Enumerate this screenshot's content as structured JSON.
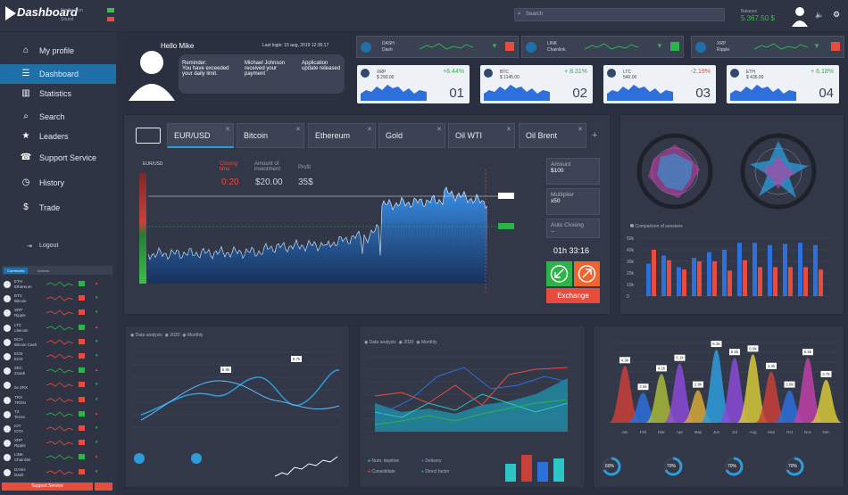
{
  "app": {
    "title": "Dashboard"
  },
  "topbar": {
    "notifications_label": "Notification",
    "sound_label": "Sound",
    "search_placeholder": "Search",
    "balance_label": "Balance",
    "balance_value": "5.367.50 $"
  },
  "sidebar": {
    "items": [
      {
        "label": "My profile",
        "icon": "home-icon"
      },
      {
        "label": "Dashboard",
        "icon": "list-icon"
      },
      {
        "label": "Statistics",
        "icon": "bar-chart-icon"
      },
      {
        "label": "Search",
        "icon": "search-icon"
      },
      {
        "label": "Leaders",
        "icon": "star-icon"
      },
      {
        "label": "Support Service",
        "icon": "support-icon"
      },
      {
        "label": "History",
        "icon": "history-icon"
      },
      {
        "label": "Trade",
        "icon": "dollar-icon"
      }
    ],
    "logout": "Logout",
    "coin_tabs": [
      "Currencies",
      "Actions"
    ],
    "coins": [
      {
        "sym": "ETH",
        "name": "Ethereum"
      },
      {
        "sym": "BTC",
        "name": "Bitcoin"
      },
      {
        "sym": "XRP",
        "name": "Ripple"
      },
      {
        "sym": "LTC",
        "name": "Litecoin"
      },
      {
        "sym": "BCH",
        "name": "Bitcoin Cash"
      },
      {
        "sym": "EOS",
        "name": "EOS"
      },
      {
        "sym": "ZEC",
        "name": "Zcash"
      },
      {
        "sym": "",
        "name": "0x ZRX"
      },
      {
        "sym": "TRX",
        "name": "TRON"
      },
      {
        "sym": "TZ",
        "name": "Tezos"
      },
      {
        "sym": "IOT",
        "name": "IOTA"
      },
      {
        "sym": "XRP",
        "name": "Ripple"
      },
      {
        "sym": "LINK",
        "name": "Chainlink"
      },
      {
        "sym": "DASH",
        "name": "Dash"
      }
    ],
    "support_button": "Support Service"
  },
  "profile": {
    "greeting": "Hello Mike",
    "last_login": "Last login: 15 aug, 2019 12:35:17",
    "reminder_title": "Reminder:",
    "reminder_text": "You have exceeded your daily limit.",
    "payment_text": "Michael Johnson received your payment",
    "update_text": "Application update released"
  },
  "ticker_top": [
    {
      "sym": "DASH",
      "name": "Dash"
    },
    {
      "sym": "LINK",
      "name": "Chainlink"
    },
    {
      "sym": "XRP",
      "name": "Ripple"
    }
  ],
  "price_cards": [
    {
      "sym": "XRP",
      "price": "$ 290.00",
      "change": "+6.44%",
      "num": "01"
    },
    {
      "sym": "BTC",
      "price": "$ 1145.00",
      "change": "+ 8.31%",
      "num": "02"
    },
    {
      "sym": "LTC",
      "price": "540.00",
      "change": "-2.19%",
      "num": "03"
    },
    {
      "sym": "ETH",
      "price": "$ 436.00",
      "change": "+ 6.18%",
      "num": "04"
    }
  ],
  "trade": {
    "tabs": [
      "EUR/USD",
      "Bitcoin",
      "Ethereum",
      "Gold",
      "Oil WTI",
      "Oil Brent"
    ],
    "add": "+",
    "pair": "EUR/USD",
    "closing_label": "Closing time",
    "closing_value": "0:20",
    "amount_label": "Amount of investment",
    "amount_value": "$20.00",
    "profit_label": "Profit",
    "profit_value": "35$",
    "side_amount_label": "Amount",
    "side_amount_value": "$100",
    "multiplier_label": "Multiplier",
    "multiplier_value": "x50",
    "auto_label": "Auto Closing",
    "auto_value": "--",
    "timer": "01h 33:16",
    "exchange": "Exchange"
  },
  "radar": {
    "legend": "Comparison of sessions"
  },
  "bars_chart": {
    "y_ticks": [
      "0",
      "10k",
      "20k",
      "30k",
      "40k",
      "50k"
    ]
  },
  "chart_bl": {
    "title": "Data analysis",
    "year": "2020",
    "period": "Monthly",
    "labels": [
      "5.9k",
      "5.7k"
    ]
  },
  "chart_bm": {
    "title": "Data analysis",
    "year": "2020",
    "period": "Monthly",
    "legend": [
      "Num. depition",
      "Delivery",
      "Consolidate",
      "Direct factor"
    ]
  },
  "chart_br": {
    "labels": [
      "4.9k",
      "2.6k",
      "4.2k",
      "5.1k",
      "2.8k",
      "6.3k",
      "5.6k",
      "5.9k",
      "4.4k",
      "2.8k",
      "5.6k",
      "3.7k"
    ],
    "x": [
      "Jan",
      "Feb",
      "Mar",
      "Apr",
      "May",
      "Jun",
      "Jul",
      "Aug",
      "Sep",
      "Oct",
      "Nov",
      "Dec"
    ],
    "pcts": [
      "60%",
      "70%",
      "70%",
      "70%"
    ]
  },
  "colors": {
    "accent": "#2d9cdb",
    "green": "#2db34a",
    "red": "#e84c3d",
    "orange": "#f0642e"
  }
}
